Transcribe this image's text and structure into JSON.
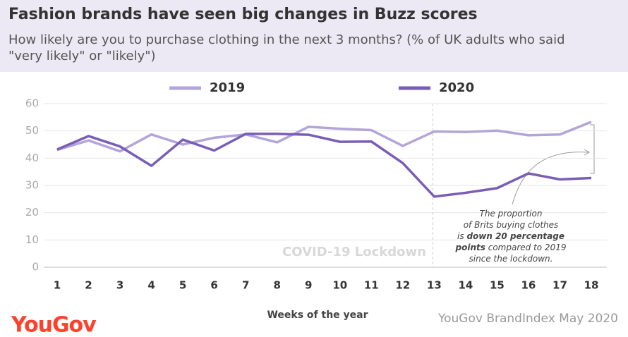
{
  "chart_data": {
    "type": "line",
    "title": "Fashion brands have seen big changes in Buzz scores",
    "subtitle": [
      "How likely are you to purchase clothing in the next 3 months? (% of UK adults who said",
      "\"very likely\" or \"likely\")"
    ],
    "x_label": "Weeks of the year",
    "categories": [
      "1",
      "2",
      "3",
      "4",
      "5",
      "6",
      "7",
      "8",
      "9",
      "10",
      "11",
      "12",
      "13",
      "14",
      "15",
      "16",
      "17",
      "18"
    ],
    "series": [
      {
        "name": "2019",
        "color": "#b3a5d8",
        "values": [
          43,
          46.5,
          42.5,
          48.7,
          45,
          47.5,
          48.7,
          45.8,
          51.5,
          50.8,
          50.3,
          44.5,
          49.8,
          49.6,
          50.1,
          48.4,
          48.7,
          53.3
        ]
      },
      {
        "name": "2020",
        "color": "#7a5db6",
        "values": [
          43.2,
          48.1,
          44.3,
          37.2,
          46.8,
          42.8,
          48.9,
          48.9,
          48.6,
          46,
          46.1,
          38.2,
          25.9,
          27.3,
          29,
          34.4,
          32.2,
          32.7
        ]
      }
    ],
    "ylim": [
      0,
      60
    ],
    "yticks": [
      0,
      10,
      20,
      30,
      40,
      50,
      60
    ],
    "grid": true,
    "lockdown_label": "COVID-19 Lockdown",
    "annotation": [
      [
        {
          "text": "The proportion"
        }
      ],
      [
        {
          "text": "of Brits buying clothes"
        }
      ],
      [
        {
          "text": "is "
        },
        {
          "text": "down 20 percentage",
          "bold": true
        }
      ],
      [
        {
          "text": "points",
          "bold": true
        },
        {
          "text": " compared to 2019"
        }
      ],
      [
        {
          "text": "since the lockdown."
        }
      ]
    ],
    "source": "YouGov BrandIndex May 2020",
    "logo": "YouGov"
  }
}
